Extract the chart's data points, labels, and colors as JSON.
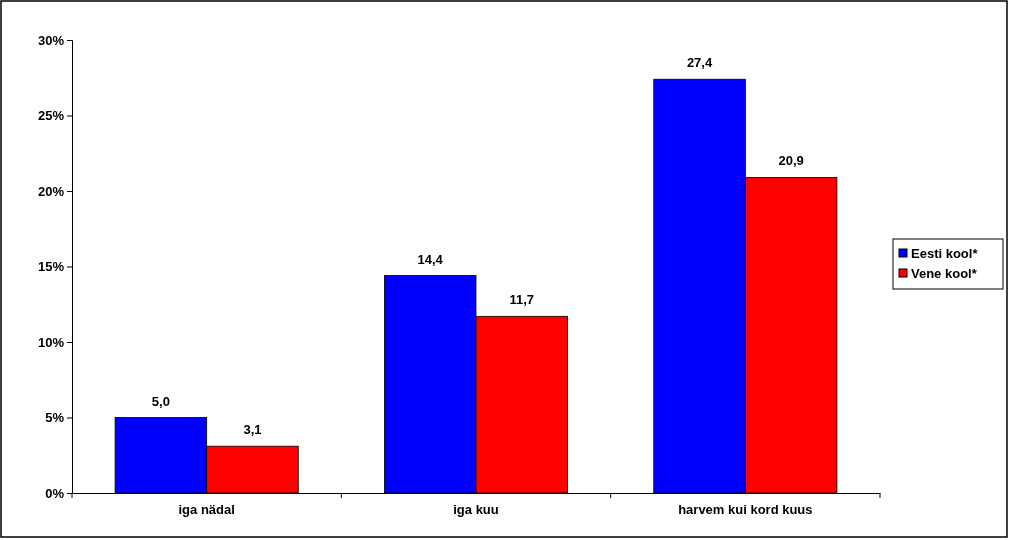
{
  "chart_data": {
    "type": "bar",
    "categories": [
      "iga nädal",
      "iga kuu",
      "harvem kui kord kuus"
    ],
    "series": [
      {
        "name": "Eesti kool*",
        "color": "#0000ff",
        "values": [
          5.0,
          14.4,
          27.4
        ],
        "value_labels": [
          "5,0",
          "14,4",
          "27,4"
        ]
      },
      {
        "name": "Vene kool*",
        "color": "#ff0000",
        "values": [
          3.1,
          11.7,
          20.9
        ],
        "value_labels": [
          "3,1",
          "11,7",
          "20,9"
        ]
      }
    ],
    "ylim": [
      0,
      30
    ],
    "yticks": [
      {
        "value": 0,
        "label": "0%"
      },
      {
        "value": 5,
        "label": "5%"
      },
      {
        "value": 10,
        "label": "10%"
      },
      {
        "value": 15,
        "label": "15%"
      },
      {
        "value": 20,
        "label": "20%"
      },
      {
        "value": 25,
        "label": "25%"
      },
      {
        "value": 30,
        "label": "30%"
      }
    ],
    "legend": "right"
  }
}
